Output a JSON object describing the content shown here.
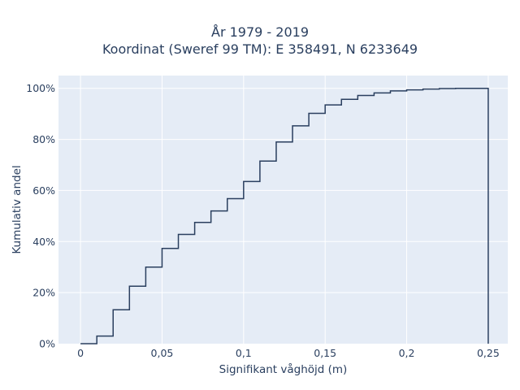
{
  "chart_data": {
    "type": "line",
    "title": [
      "År 1979 - 2019",
      "Koordinat (Sweref 99 TM): E 358491, N 6233649"
    ],
    "xlabel": "Signifikant våghöjd (m)",
    "ylabel": "Kumulativ andel",
    "xlim": [
      -0.0135,
      0.262
    ],
    "ylim": [
      0,
      1.05
    ],
    "xticks": [
      {
        "value": 0,
        "label": "0"
      },
      {
        "value": 0.05,
        "label": "0,05"
      },
      {
        "value": 0.1,
        "label": "0,1"
      },
      {
        "value": 0.15,
        "label": "0,15"
      },
      {
        "value": 0.2,
        "label": "0,2"
      },
      {
        "value": 0.25,
        "label": "0,25"
      }
    ],
    "yticks": [
      {
        "value": 0,
        "label": "0%"
      },
      {
        "value": 0.2,
        "label": "20%"
      },
      {
        "value": 0.4,
        "label": "40%"
      },
      {
        "value": 0.6,
        "label": "60%"
      },
      {
        "value": 0.8,
        "label": "80%"
      },
      {
        "value": 1.0,
        "label": "100%"
      }
    ],
    "grid": true,
    "colors": {
      "plot_bg": "#e5ecf6",
      "grid": "#ffffff",
      "line": "#2a3f5f"
    },
    "series": [
      {
        "step": "post",
        "x": [
          0,
          0.01,
          0.02,
          0.03,
          0.04,
          0.05,
          0.06,
          0.07,
          0.08,
          0.09,
          0.1,
          0.11,
          0.12,
          0.13,
          0.14,
          0.15,
          0.16,
          0.17,
          0.18,
          0.19,
          0.2,
          0.21,
          0.22,
          0.23,
          0.25
        ],
        "y": [
          0,
          0.03,
          0.133,
          0.225,
          0.3,
          0.373,
          0.428,
          0.475,
          0.52,
          0.568,
          0.635,
          0.715,
          0.79,
          0.853,
          0.902,
          0.935,
          0.957,
          0.972,
          0.982,
          0.99,
          0.994,
          0.997,
          0.999,
          1.0,
          0
        ]
      }
    ]
  }
}
